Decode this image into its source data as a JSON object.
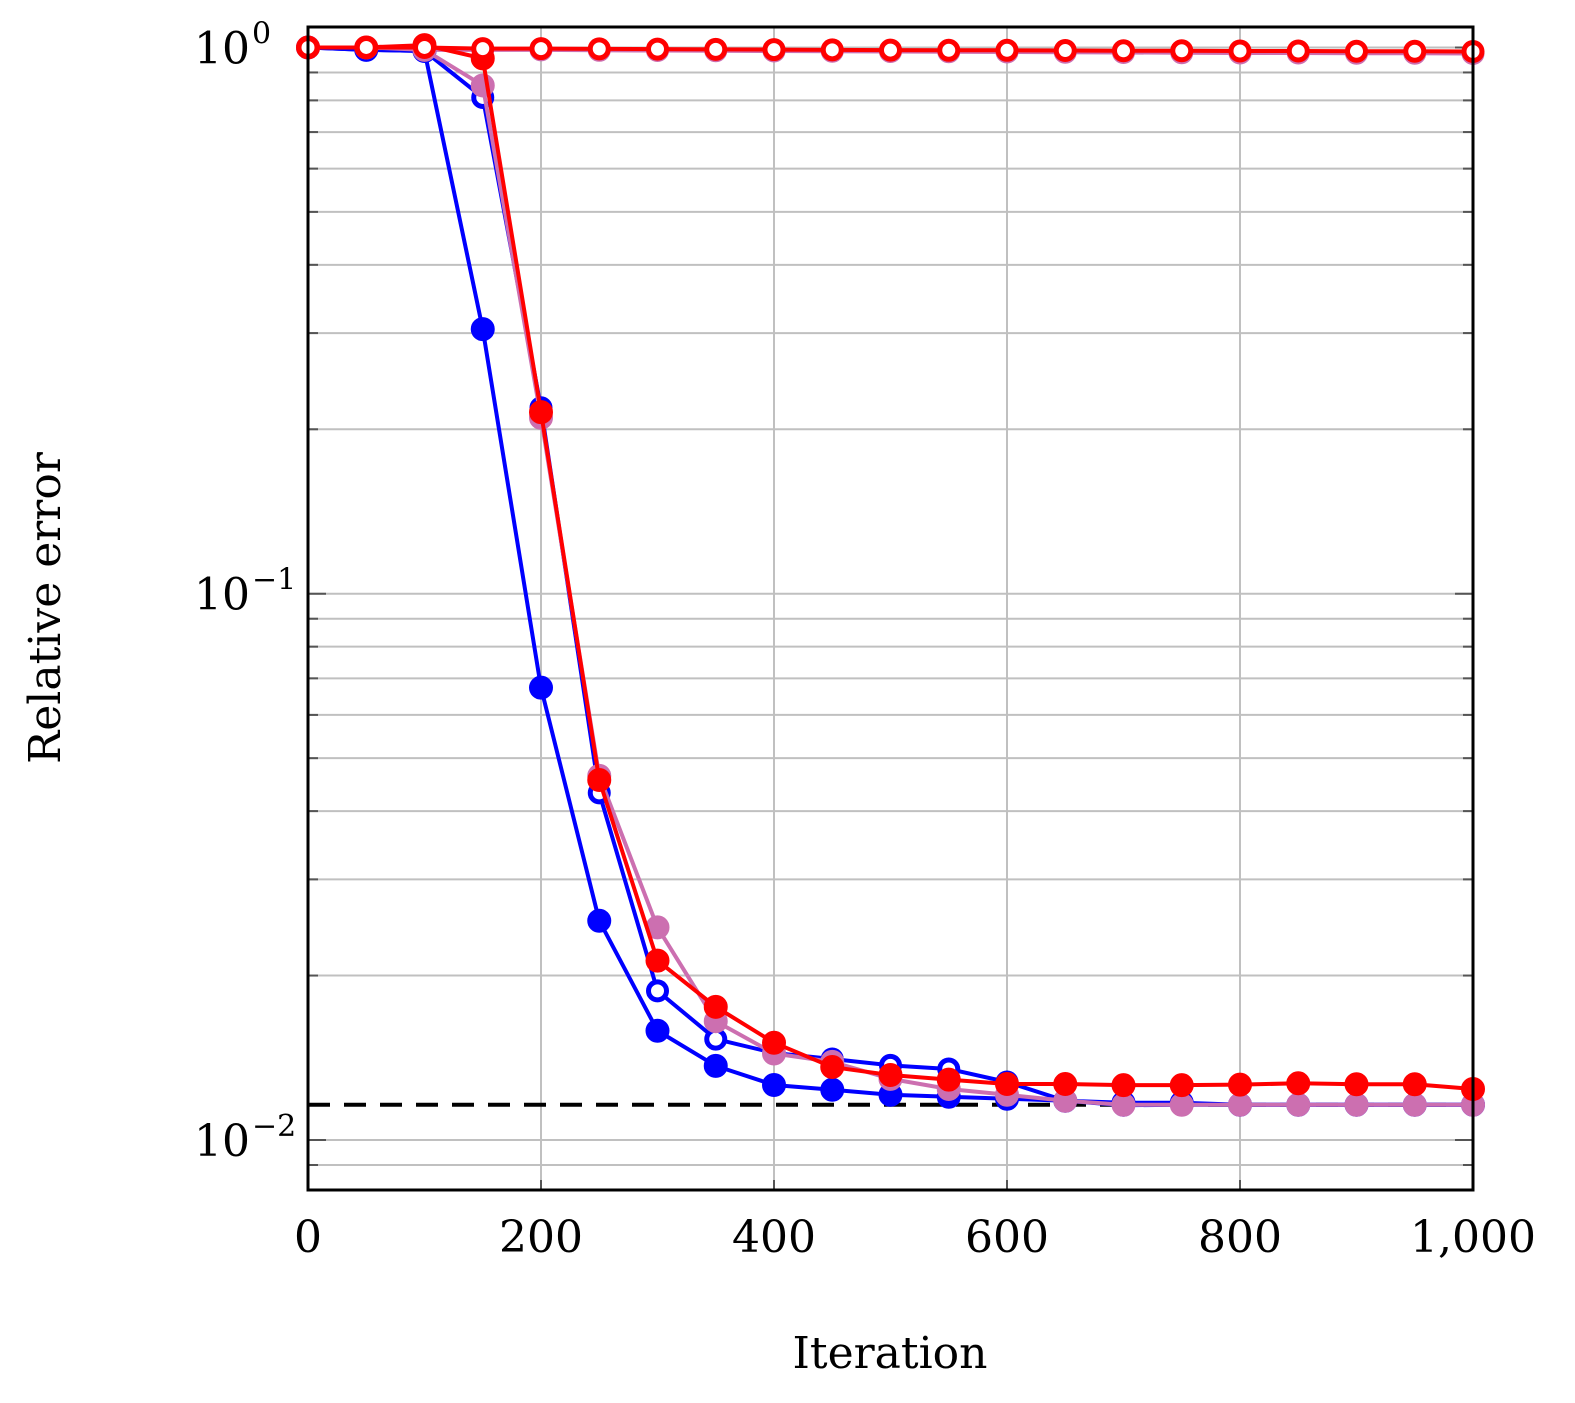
{
  "chart_data": {
    "type": "line",
    "title": "",
    "xlabel": "Iteration",
    "ylabel": "Relative error",
    "xlim": [
      0,
      1000
    ],
    "ylim": [
      0.0081,
      1.09
    ],
    "yscale": "log",
    "grid": true,
    "legend": "none",
    "x_ticks": [
      0,
      200,
      400,
      600,
      800,
      1000
    ],
    "x_tick_labels": [
      "0",
      "200",
      "400",
      "600",
      "800",
      "1,000"
    ],
    "y_ticks": [
      1,
      0.1,
      0.01
    ],
    "y_tick_labels": [
      {
        "base": "10",
        "exp": "0"
      },
      {
        "base": "10",
        "exp": "−1"
      },
      {
        "base": "10",
        "exp": "−2"
      }
    ],
    "x": [
      0,
      50,
      100,
      150,
      200,
      250,
      300,
      350,
      400,
      450,
      500,
      550,
      600,
      650,
      700,
      750,
      800,
      850,
      900,
      950,
      1000
    ],
    "reference_line": {
      "y": 0.0116,
      "color": "#000000",
      "style": "dashed"
    },
    "series": [
      {
        "color": "#cc6fb0",
        "marker": "open",
        "values": [
          1.0,
          0.995,
          0.99,
          0.99,
          0.99,
          0.988,
          0.987,
          0.986,
          0.985,
          0.984,
          0.983,
          0.982,
          0.981,
          0.98,
          0.979,
          0.978,
          0.977,
          0.977,
          0.976,
          0.976,
          0.975
        ]
      },
      {
        "color": "#0000ff",
        "marker": "filled",
        "values": [
          1.0,
          0.99,
          0.985,
          0.305,
          0.0673,
          0.0252,
          0.01585,
          0.01367,
          0.01261,
          0.01236,
          0.0121,
          0.012,
          0.0119,
          0.0118,
          0.0117,
          0.0117,
          0.0116,
          0.0116,
          0.0116,
          0.0116,
          0.0116
        ]
      },
      {
        "color": "#0000ff",
        "marker": "open",
        "values": [
          1.0,
          0.99,
          0.985,
          0.81,
          0.219,
          0.0432,
          0.01875,
          0.0153,
          0.01443,
          0.01407,
          0.0137,
          0.01349,
          0.01277,
          0.0118,
          0.01158,
          0.0116,
          0.0116,
          0.0116,
          0.0116,
          0.0116,
          0.0116
        ]
      },
      {
        "color": "#cc6fb0",
        "marker": "filled",
        "values": [
          1.0,
          1.0,
          0.99,
          0.852,
          0.21,
          0.0464,
          0.0245,
          0.0165,
          0.0144,
          0.0139,
          0.01294,
          0.0124,
          0.0121,
          0.0118,
          0.0116,
          0.0116,
          0.0116,
          0.0116,
          0.0116,
          0.0116,
          0.0116
        ]
      },
      {
        "color": "#ff0000",
        "marker": "filled",
        "values": [
          1.0,
          1.0,
          1.01,
          0.955,
          0.215,
          0.0456,
          0.0213,
          0.01753,
          0.01507,
          0.0136,
          0.01315,
          0.0129,
          0.01266,
          0.01266,
          0.0126,
          0.0126,
          0.01263,
          0.0127,
          0.01265,
          0.01265,
          0.0124
        ]
      },
      {
        "color": "#ff0000",
        "marker": "open",
        "values": [
          1.0,
          1.0,
          1.0,
          0.995,
          0.995,
          0.994,
          0.993,
          0.992,
          0.991,
          0.99,
          0.989,
          0.988,
          0.988,
          0.987,
          0.986,
          0.986,
          0.985,
          0.985,
          0.984,
          0.984,
          0.983
        ]
      }
    ]
  }
}
